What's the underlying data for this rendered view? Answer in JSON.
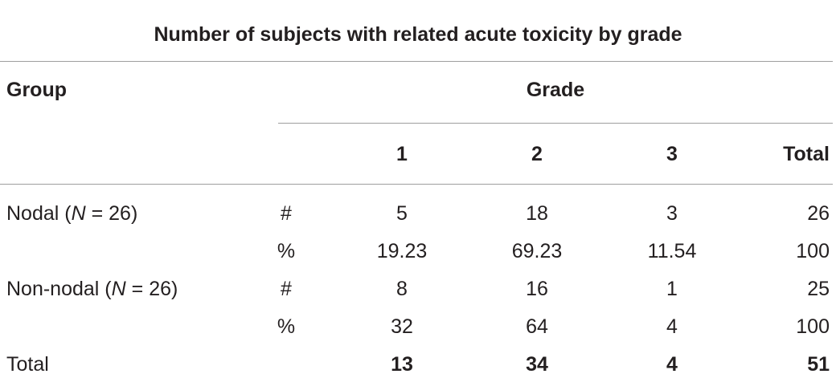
{
  "table": {
    "title": "Number of subjects with related acute toxicity by grade",
    "group_header": "Group",
    "grade_header": "Grade",
    "grade_columns": [
      "1",
      "2",
      "3",
      "Total"
    ],
    "rows": [
      {
        "group_prefix": "Nodal (",
        "group_var": "N",
        "group_suffix": " = 26)",
        "unit": "#",
        "values": [
          "5",
          "18",
          "3",
          "26"
        ]
      },
      {
        "group_prefix": "",
        "group_var": "",
        "group_suffix": "",
        "unit": "%",
        "values": [
          "19.23",
          "69.23",
          "11.54",
          "100"
        ]
      },
      {
        "group_prefix": "Non-nodal (",
        "group_var": "N",
        "group_suffix": " = 26)",
        "unit": "#",
        "values": [
          "8",
          "16",
          "1",
          "25"
        ]
      },
      {
        "group_prefix": "",
        "group_var": "",
        "group_suffix": "",
        "unit": "%",
        "values": [
          "32",
          "64",
          "4",
          "100"
        ]
      }
    ],
    "total_row": {
      "label": "Total",
      "values": [
        "13",
        "34",
        "4",
        "51"
      ]
    }
  }
}
